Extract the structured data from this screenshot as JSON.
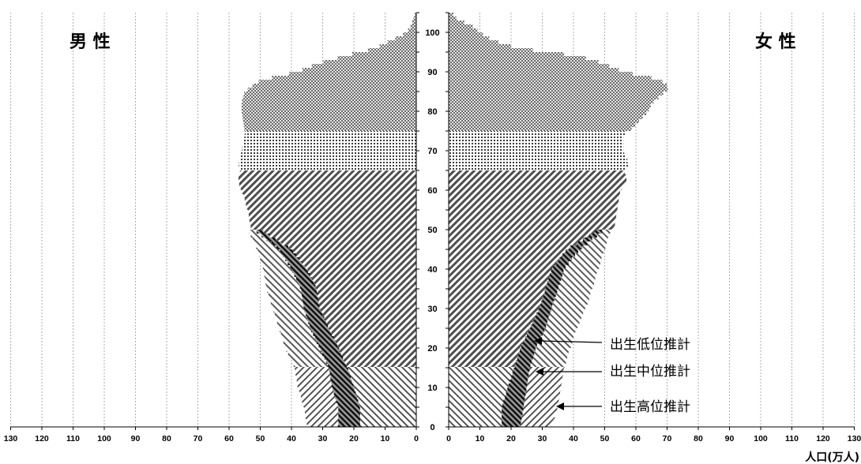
{
  "chart_data": {
    "type": "population-pyramid",
    "panels": [
      {
        "side": "left",
        "label": "男 性"
      },
      {
        "side": "right",
        "label": "女 性"
      }
    ],
    "x_ticks_left": [
      "130",
      "120",
      "110",
      "100",
      "90",
      "80",
      "70",
      "60",
      "50",
      "40",
      "30",
      "20",
      "10",
      "0"
    ],
    "x_ticks_right": [
      "0",
      "10",
      "20",
      "30",
      "40",
      "50",
      "60",
      "70",
      "80",
      "90",
      "100",
      "110",
      "120",
      "130"
    ],
    "xlim": [
      0,
      130
    ],
    "age_ticks": [
      "0",
      "10",
      "20",
      "30",
      "40",
      "50",
      "60",
      "70",
      "80",
      "90",
      "100"
    ],
    "age_range": [
      0,
      105
    ],
    "x_unit_label": "人口(万人)",
    "vertical_grid": true,
    "series": [
      {
        "name": "出生低位推計",
        "male": [
          [
            0,
            18
          ],
          [
            5,
            18
          ],
          [
            10,
            20
          ],
          [
            15,
            22
          ],
          [
            20,
            25
          ],
          [
            25,
            28
          ],
          [
            30,
            31
          ],
          [
            35,
            32
          ],
          [
            40,
            35
          ],
          [
            45,
            40
          ],
          [
            50,
            50
          ]
        ],
        "female": [
          [
            0,
            17
          ],
          [
            5,
            17
          ],
          [
            10,
            19
          ],
          [
            15,
            21
          ],
          [
            20,
            23
          ],
          [
            25,
            26
          ],
          [
            30,
            29
          ],
          [
            35,
            31
          ],
          [
            40,
            33
          ],
          [
            45,
            38
          ],
          [
            50,
            48
          ]
        ]
      },
      {
        "name": "出生中位推計",
        "male": [
          [
            0,
            25
          ],
          [
            5,
            25
          ],
          [
            10,
            27
          ],
          [
            15,
            28
          ],
          [
            20,
            31
          ],
          [
            25,
            34
          ],
          [
            30,
            36
          ],
          [
            35,
            37
          ],
          [
            40,
            40
          ],
          [
            45,
            44
          ],
          [
            50,
            52
          ]
        ],
        "female": [
          [
            0,
            23
          ],
          [
            5,
            24
          ],
          [
            10,
            25
          ],
          [
            15,
            26
          ],
          [
            20,
            28
          ],
          [
            25,
            31
          ],
          [
            30,
            33
          ],
          [
            35,
            35
          ],
          [
            40,
            37
          ],
          [
            45,
            42
          ],
          [
            50,
            50
          ]
        ]
      },
      {
        "name": "出生高位推計",
        "male": [
          [
            0,
            35
          ],
          [
            5,
            36
          ],
          [
            10,
            38
          ],
          [
            15,
            39
          ],
          [
            20,
            42
          ],
          [
            25,
            44
          ],
          [
            30,
            46
          ],
          [
            35,
            48
          ],
          [
            40,
            49
          ],
          [
            45,
            51
          ],
          [
            50,
            54
          ]
        ],
        "female": [
          [
            0,
            33
          ],
          [
            5,
            35
          ],
          [
            10,
            36
          ],
          [
            15,
            37
          ],
          [
            20,
            39
          ],
          [
            25,
            41
          ],
          [
            30,
            44
          ],
          [
            35,
            46
          ],
          [
            40,
            48
          ],
          [
            45,
            50
          ],
          [
            50,
            52
          ]
        ]
      }
    ],
    "common_upper": {
      "male": [
        [
          50,
          53
        ],
        [
          55,
          54
        ],
        [
          60,
          56
        ],
        [
          62,
          57
        ],
        [
          64,
          57
        ],
        [
          65,
          56
        ],
        [
          66,
          57
        ],
        [
          70,
          56
        ],
        [
          74,
          55
        ],
        [
          75,
          55
        ],
        [
          80,
          56
        ],
        [
          82,
          56
        ],
        [
          85,
          55
        ],
        [
          86,
          53
        ],
        [
          87,
          52
        ],
        [
          88,
          49
        ],
        [
          90,
          38
        ],
        [
          92,
          32
        ],
        [
          94,
          23
        ],
        [
          96,
          13
        ],
        [
          98,
          8
        ],
        [
          100,
          3
        ],
        [
          102,
          1.5
        ],
        [
          104,
          0.7
        ],
        [
          105,
          0.3
        ]
      ],
      "female": [
        [
          50,
          53
        ],
        [
          55,
          54
        ],
        [
          60,
          55
        ],
        [
          62,
          57
        ],
        [
          64,
          57
        ],
        [
          65,
          56
        ],
        [
          66,
          58
        ],
        [
          70,
          56
        ],
        [
          74,
          56
        ],
        [
          75,
          58
        ],
        [
          80,
          64
        ],
        [
          82,
          65
        ],
        [
          84,
          68
        ],
        [
          86,
          71
        ],
        [
          87,
          69
        ],
        [
          88,
          68
        ],
        [
          90,
          56
        ],
        [
          92,
          50
        ],
        [
          94,
          42
        ],
        [
          96,
          22
        ],
        [
          98,
          14
        ],
        [
          100,
          10
        ],
        [
          102,
          7
        ],
        [
          103,
          3
        ],
        [
          104,
          2
        ],
        [
          105,
          1
        ]
      ]
    },
    "annotations": [
      "出生低位推計",
      "出生中位推計",
      "出生高位推計"
    ]
  }
}
